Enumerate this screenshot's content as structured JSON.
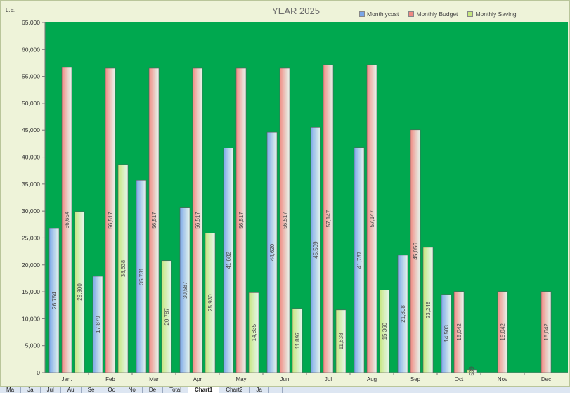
{
  "chart_data": {
    "type": "bar",
    "title": "YEAR 2025",
    "ylabel": "L.E.",
    "ylim": [
      0,
      65000
    ],
    "ytick_step": 5000,
    "grid": false,
    "legend_position": "top-right",
    "plot_background": "#00a84f",
    "categories": [
      "Jan.",
      "Feb",
      "Mar",
      "Apr",
      "May",
      "Jun",
      "Jul",
      "Aug",
      "Sep",
      "Oct",
      "Nov",
      "Dec"
    ],
    "series": [
      {
        "name": "Monthlycost",
        "color": "#7aa6e8",
        "values": [
          26754,
          17879,
          35731,
          30587,
          41682,
          44620,
          45509,
          41787,
          21808,
          14503,
          0,
          0
        ],
        "data_labels": [
          "26,754",
          "17,879",
          "35,731",
          "30,587",
          "41,682",
          "44,620",
          "45,509",
          "41,787",
          "21,808",
          "14,503",
          "",
          ""
        ]
      },
      {
        "name": "Monthly Budget",
        "color": "#f08a82",
        "values": [
          56654,
          56517,
          56517,
          56517,
          56517,
          56517,
          57147,
          57147,
          45056,
          15042,
          15042,
          15042
        ],
        "data_labels": [
          "56,654",
          "56,517",
          "56,517",
          "56,517",
          "56,517",
          "56,517",
          "57,147",
          "57,147",
          "45,056",
          "15,042",
          "15,042",
          "15,042"
        ]
      },
      {
        "name": "Monthly Saving",
        "color": "#c5e67e",
        "values": [
          29900,
          38638,
          20787,
          25930,
          14835,
          11897,
          11638,
          15360,
          23248,
          539,
          0,
          0
        ],
        "data_labels": [
          "29,900",
          "38,638",
          "20,787",
          "25,930",
          "14,835",
          "11,897",
          "11,638",
          "15,360",
          "23,248",
          "539",
          "",
          ""
        ]
      }
    ]
  },
  "sheet_tabs": [
    "Ma",
    "Ja",
    "Jul",
    "Au",
    "Se",
    "Oc",
    "No",
    "De",
    "Total",
    "Chart1",
    "Chart2",
    "Ja",
    ""
  ],
  "active_sheet_tab": "Chart1"
}
